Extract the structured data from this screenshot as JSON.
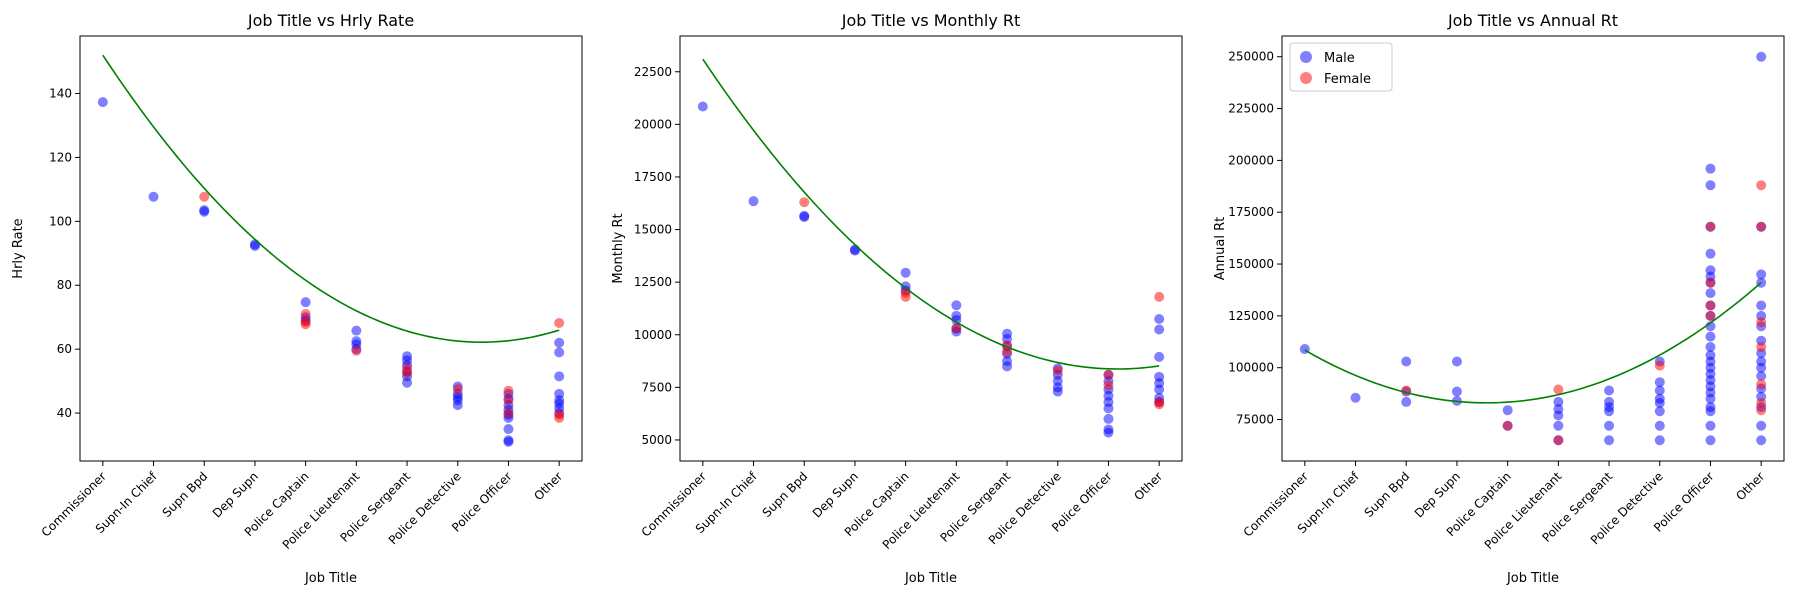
{
  "colors": {
    "male": "#0000ff",
    "female": "#ff0000",
    "trend": "#008000"
  },
  "legend": {
    "placement": "upper-left",
    "entries": [
      "Male",
      "Female"
    ]
  },
  "chart_data": [
    {
      "type": "scatter",
      "title": "Job Title vs Hrly Rate",
      "xlabel": "Job Title",
      "ylabel": "Hrly Rate",
      "categories": [
        "Commissioner",
        "Supn-In Chief",
        "Supn Bpd",
        "Dep Supn",
        "Police Captain",
        "Police Lieutenant",
        "Police Sergeant",
        "Police Detective",
        "Police Officer",
        "Other"
      ],
      "ylim": [
        25,
        158
      ],
      "yticks": [
        40,
        60,
        80,
        100,
        120,
        140
      ],
      "series": [
        {
          "name": "Male",
          "points": [
            [
              0,
              137.3
            ],
            [
              1,
              107.7
            ],
            [
              2,
              103.0
            ],
            [
              2,
              103.5
            ],
            [
              3,
              92.3
            ],
            [
              3,
              92.8
            ],
            [
              4,
              74.7
            ],
            [
              4,
              70.0
            ],
            [
              4,
              69.0
            ],
            [
              5,
              65.8
            ],
            [
              5,
              62.5
            ],
            [
              5,
              61.5
            ],
            [
              5,
              60.0
            ],
            [
              6,
              57.8
            ],
            [
              6,
              56.5
            ],
            [
              6,
              55.0
            ],
            [
              6,
              53.0
            ],
            [
              6,
              51.5
            ],
            [
              6,
              49.5
            ],
            [
              7,
              48.3
            ],
            [
              7,
              46.0
            ],
            [
              7,
              45.0
            ],
            [
              7,
              44.0
            ],
            [
              7,
              42.5
            ],
            [
              8,
              46.0
            ],
            [
              8,
              44.5
            ],
            [
              8,
              42.5
            ],
            [
              8,
              41.0
            ],
            [
              8,
              39.5
            ],
            [
              8,
              38.5
            ],
            [
              8,
              35.0
            ],
            [
              8,
              31.5
            ],
            [
              8,
              31.0
            ],
            [
              9,
              62.0
            ],
            [
              9,
              59.0
            ],
            [
              9,
              51.5
            ],
            [
              9,
              46.0
            ],
            [
              9,
              44.0
            ],
            [
              9,
              43.0
            ],
            [
              9,
              41.5
            ],
            [
              9,
              40.0
            ]
          ]
        },
        {
          "name": "Female",
          "points": [
            [
              2,
              107.7
            ],
            [
              4,
              71.0
            ],
            [
              4,
              68.5
            ],
            [
              4,
              67.8
            ],
            [
              5,
              59.5
            ],
            [
              6,
              54.0
            ],
            [
              6,
              52.5
            ],
            [
              7,
              47.5
            ],
            [
              8,
              47.0
            ],
            [
              8,
              44.0
            ],
            [
              8,
              40.0
            ],
            [
              9,
              68.2
            ],
            [
              9,
              39.5
            ],
            [
              9,
              38.5
            ]
          ]
        }
      ],
      "trend": {
        "type": "quadratic",
        "coefficients": [
          152.0,
          -24.05,
          1.61
        ],
        "domain": [
          0,
          9
        ]
      }
    },
    {
      "type": "scatter",
      "title": "Job Title vs Monthly Rt",
      "xlabel": "Job Title",
      "ylabel": "Monthly Rt",
      "categories": [
        "Commissioner",
        "Supn-In Chief",
        "Supn Bpd",
        "Dep Supn",
        "Police Captain",
        "Police Lieutenant",
        "Police Sergeant",
        "Police Detective",
        "Police Officer",
        "Other"
      ],
      "ylim": [
        4000,
        24200
      ],
      "yticks": [
        5000,
        7500,
        10000,
        12500,
        15000,
        17500,
        20000,
        22500
      ],
      "series": [
        {
          "name": "Male",
          "points": [
            [
              0,
              20850
            ],
            [
              1,
              16350
            ],
            [
              2,
              15650
            ],
            [
              2,
              15600
            ],
            [
              3,
              14050
            ],
            [
              3,
              14000
            ],
            [
              4,
              12950
            ],
            [
              4,
              12300
            ],
            [
              4,
              12100
            ],
            [
              5,
              11400
            ],
            [
              5,
              10900
            ],
            [
              5,
              10700
            ],
            [
              5,
              10300
            ],
            [
              5,
              10150
            ],
            [
              6,
              10050
            ],
            [
              6,
              9800
            ],
            [
              6,
              9450
            ],
            [
              6,
              9100
            ],
            [
              6,
              8750
            ],
            [
              6,
              8500
            ],
            [
              7,
              8400
            ],
            [
              7,
              8100
            ],
            [
              7,
              7800
            ],
            [
              7,
              7500
            ],
            [
              7,
              7300
            ],
            [
              8,
              8100
            ],
            [
              8,
              7800
            ],
            [
              8,
              7400
            ],
            [
              8,
              7100
            ],
            [
              8,
              6800
            ],
            [
              8,
              6500
            ],
            [
              8,
              6000
            ],
            [
              8,
              5500
            ],
            [
              8,
              5350
            ],
            [
              9,
              10750
            ],
            [
              9,
              10250
            ],
            [
              9,
              8950
            ],
            [
              9,
              8000
            ],
            [
              9,
              7700
            ],
            [
              9,
              7400
            ],
            [
              9,
              7000
            ],
            [
              9,
              6800
            ]
          ]
        },
        {
          "name": "Female",
          "points": [
            [
              2,
              16300
            ],
            [
              4,
              12000
            ],
            [
              4,
              11800
            ],
            [
              5,
              10300
            ],
            [
              6,
              9500
            ],
            [
              6,
              9200
            ],
            [
              7,
              8300
            ],
            [
              8,
              8100
            ],
            [
              8,
              7600
            ],
            [
              9,
              11800
            ],
            [
              9,
              6800
            ],
            [
              9,
              6700
            ]
          ]
        }
      ],
      "trend": {
        "type": "quadratic",
        "coefficients": [
          23100,
          -3600,
          220
        ],
        "domain": [
          0,
          9
        ]
      }
    },
    {
      "type": "scatter",
      "title": "Job Title vs Annual Rt",
      "xlabel": "Job Title",
      "ylabel": "Annual Rt",
      "categories": [
        "Commissioner",
        "Supn-In Chief",
        "Supn Bpd",
        "Dep Supn",
        "Police Captain",
        "Police Lieutenant",
        "Police Sergeant",
        "Police Detective",
        "Police Officer",
        "Other"
      ],
      "ylim": [
        55000,
        260000
      ],
      "yticks": [
        75000,
        100000,
        125000,
        150000,
        175000,
        200000,
        225000,
        250000
      ],
      "series": [
        {
          "name": "Male",
          "points": [
            [
              0,
              109000
            ],
            [
              1,
              85500
            ],
            [
              2,
              103000
            ],
            [
              2,
              88500
            ],
            [
              2,
              83500
            ],
            [
              3,
              103000
            ],
            [
              3,
              88500
            ],
            [
              3,
              84000
            ],
            [
              4,
              79500
            ],
            [
              4,
              72000
            ],
            [
              5,
              83500
            ],
            [
              5,
              80000
            ],
            [
              5,
              77000
            ],
            [
              5,
              72000
            ],
            [
              5,
              65000
            ],
            [
              6,
              89000
            ],
            [
              6,
              83500
            ],
            [
              6,
              81000
            ],
            [
              6,
              79000
            ],
            [
              6,
              72000
            ],
            [
              6,
              65000
            ],
            [
              7,
              103000
            ],
            [
              7,
              93000
            ],
            [
              7,
              89000
            ],
            [
              7,
              85000
            ],
            [
              7,
              83000
            ],
            [
              7,
              79000
            ],
            [
              7,
              72000
            ],
            [
              7,
              65000
            ],
            [
              8,
              196000
            ],
            [
              8,
              188000
            ],
            [
              8,
              168000
            ],
            [
              8,
              155000
            ],
            [
              8,
              147000
            ],
            [
              8,
              144000
            ],
            [
              8,
              141000
            ],
            [
              8,
              136000
            ],
            [
              8,
              130000
            ],
            [
              8,
              125000
            ],
            [
              8,
              120000
            ],
            [
              8,
              115000
            ],
            [
              8,
              110000
            ],
            [
              8,
              106000
            ],
            [
              8,
              103000
            ],
            [
              8,
              100000
            ],
            [
              8,
              97000
            ],
            [
              8,
              94000
            ],
            [
              8,
              91000
            ],
            [
              8,
              88000
            ],
            [
              8,
              85000
            ],
            [
              8,
              81000
            ],
            [
              8,
              79000
            ],
            [
              8,
              72000
            ],
            [
              8,
              65000
            ],
            [
              9,
              250000
            ],
            [
              9,
              168000
            ],
            [
              9,
              145000
            ],
            [
              9,
              141000
            ],
            [
              9,
              130000
            ],
            [
              9,
              125000
            ],
            [
              9,
              120000
            ],
            [
              9,
              113000
            ],
            [
              9,
              107000
            ],
            [
              9,
              103000
            ],
            [
              9,
              100000
            ],
            [
              9,
              96000
            ],
            [
              9,
              90000
            ],
            [
              9,
              86000
            ],
            [
              9,
              81000
            ],
            [
              9,
              72000
            ],
            [
              9,
              65000
            ]
          ]
        },
        {
          "name": "Female",
          "points": [
            [
              2,
              89000
            ],
            [
              4,
              72000
            ],
            [
              5,
              89500
            ],
            [
              5,
              65000
            ],
            [
              7,
              101000
            ],
            [
              8,
              168000
            ],
            [
              8,
              141000
            ],
            [
              8,
              130000
            ],
            [
              8,
              125000
            ],
            [
              9,
              188000
            ],
            [
              9,
              168000
            ],
            [
              9,
              122000
            ],
            [
              9,
              110000
            ],
            [
              9,
              92000
            ],
            [
              9,
              83000
            ],
            [
              9,
              79500
            ]
          ]
        }
      ],
      "trend": {
        "type": "quadratic",
        "coefficients": [
          108500,
          -14200,
          1980
        ],
        "domain": [
          0,
          9
        ]
      }
    }
  ]
}
